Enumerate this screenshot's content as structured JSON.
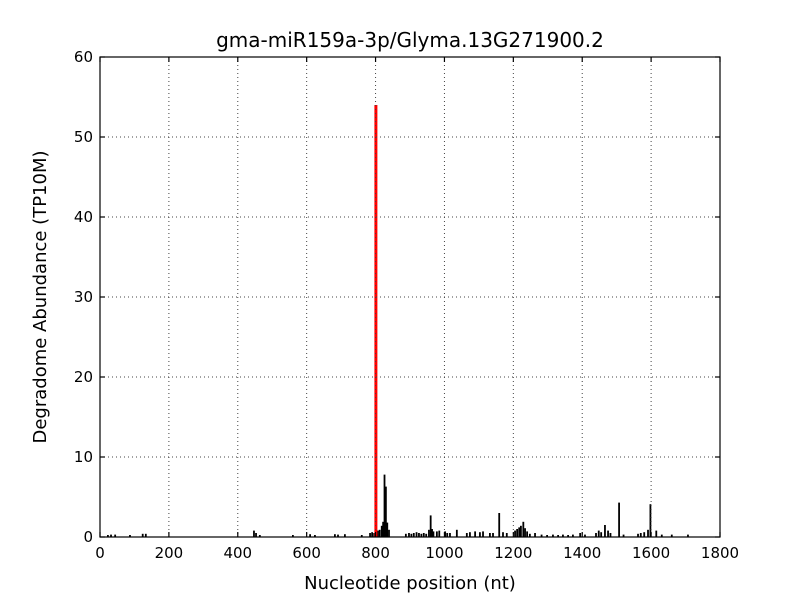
{
  "figure": {
    "background": "#ffffff"
  },
  "chart_data": {
    "type": "bar",
    "title": "gma-miR159a-3p/Glyma.13G271900.2",
    "xlabel": "Nucleotide position (nt)",
    "ylabel": "Degradome Abundance (TP10M)",
    "xlim": [
      0,
      1800
    ],
    "ylim": [
      0,
      60
    ],
    "xticks": [
      0,
      200,
      400,
      600,
      800,
      1000,
      1200,
      1400,
      1600,
      1800
    ],
    "yticks": [
      0,
      10,
      20,
      30,
      40,
      50,
      60
    ],
    "grid": "dotted-major",
    "legend_position": "none",
    "bar_color": "#000000",
    "grid_color": "#444444",
    "highlight_color": "#ff0000",
    "highlight_bar": {
      "x": 801,
      "y": 54.0
    },
    "bars": [
      [
        23,
        0.25
      ],
      [
        32,
        0.3
      ],
      [
        44,
        0.3
      ],
      [
        87,
        0.25
      ],
      [
        124,
        0.4
      ],
      [
        133,
        0.4
      ],
      [
        447,
        0.8
      ],
      [
        453,
        0.5
      ],
      [
        464,
        0.25
      ],
      [
        560,
        0.25
      ],
      [
        610,
        0.35
      ],
      [
        624,
        0.25
      ],
      [
        682,
        0.35
      ],
      [
        691,
        0.3
      ],
      [
        711,
        0.35
      ],
      [
        760,
        0.25
      ],
      [
        784,
        0.5
      ],
      [
        790,
        0.6
      ],
      [
        796,
        0.5
      ],
      [
        807,
        0.8
      ],
      [
        812,
        0.9
      ],
      [
        818,
        1.4
      ],
      [
        822,
        1.9
      ],
      [
        826,
        7.8
      ],
      [
        830,
        6.3
      ],
      [
        834,
        1.8
      ],
      [
        839,
        0.9
      ],
      [
        888,
        0.4
      ],
      [
        897,
        0.5
      ],
      [
        904,
        0.4
      ],
      [
        911,
        0.5
      ],
      [
        919,
        0.6
      ],
      [
        926,
        0.5
      ],
      [
        933,
        0.4
      ],
      [
        940,
        0.5
      ],
      [
        947,
        0.4
      ],
      [
        955,
        0.9
      ],
      [
        960,
        2.7
      ],
      [
        964,
        1.0
      ],
      [
        968,
        0.7
      ],
      [
        978,
        0.7
      ],
      [
        985,
        0.8
      ],
      [
        1002,
        0.7
      ],
      [
        1008,
        0.5
      ],
      [
        1016,
        0.5
      ],
      [
        1036,
        0.9
      ],
      [
        1065,
        0.5
      ],
      [
        1074,
        0.6
      ],
      [
        1089,
        0.7
      ],
      [
        1103,
        0.6
      ],
      [
        1112,
        0.7
      ],
      [
        1132,
        0.5
      ],
      [
        1141,
        0.5
      ],
      [
        1159,
        3.0
      ],
      [
        1170,
        0.6
      ],
      [
        1181,
        0.5
      ],
      [
        1205,
        0.8
      ],
      [
        1211,
        1.0
      ],
      [
        1217,
        1.2
      ],
      [
        1222,
        1.4
      ],
      [
        1229,
        1.9
      ],
      [
        1234,
        1.1
      ],
      [
        1240,
        0.7
      ],
      [
        1248,
        0.4
      ],
      [
        1263,
        0.5
      ],
      [
        1282,
        0.3
      ],
      [
        1298,
        0.25
      ],
      [
        1315,
        0.3
      ],
      [
        1330,
        0.25
      ],
      [
        1344,
        0.3
      ],
      [
        1359,
        0.25
      ],
      [
        1373,
        0.3
      ],
      [
        1394,
        0.5
      ],
      [
        1408,
        0.3
      ],
      [
        1440,
        0.5
      ],
      [
        1448,
        0.8
      ],
      [
        1455,
        0.6
      ],
      [
        1466,
        1.5
      ],
      [
        1475,
        0.8
      ],
      [
        1482,
        0.5
      ],
      [
        1507,
        4.3
      ],
      [
        1520,
        0.3
      ],
      [
        1562,
        0.4
      ],
      [
        1570,
        0.5
      ],
      [
        1580,
        0.6
      ],
      [
        1591,
        0.9
      ],
      [
        1598,
        4.1
      ],
      [
        1615,
        0.8
      ],
      [
        1631,
        0.3
      ],
      [
        1660,
        0.3
      ],
      [
        1707,
        0.3
      ]
    ]
  }
}
